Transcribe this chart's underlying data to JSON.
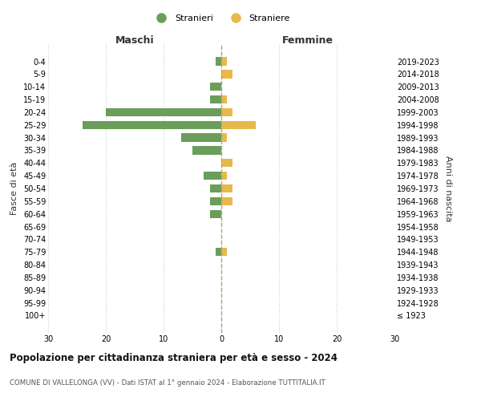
{
  "age_groups": [
    "0-4",
    "5-9",
    "10-14",
    "15-19",
    "20-24",
    "25-29",
    "30-34",
    "35-39",
    "40-44",
    "45-49",
    "50-54",
    "55-59",
    "60-64",
    "65-69",
    "70-74",
    "75-79",
    "80-84",
    "85-89",
    "90-94",
    "95-99",
    "100+"
  ],
  "birth_years": [
    "2019-2023",
    "2014-2018",
    "2009-2013",
    "2004-2008",
    "1999-2003",
    "1994-1998",
    "1989-1993",
    "1984-1988",
    "1979-1983",
    "1974-1978",
    "1969-1973",
    "1964-1968",
    "1959-1963",
    "1954-1958",
    "1949-1953",
    "1944-1948",
    "1939-1943",
    "1934-1938",
    "1929-1933",
    "1924-1928",
    "≤ 1923"
  ],
  "maschi": [
    1,
    0,
    2,
    2,
    20,
    24,
    7,
    5,
    0,
    3,
    2,
    2,
    2,
    0,
    0,
    1,
    0,
    0,
    0,
    0,
    0
  ],
  "femmine": [
    1,
    2,
    0,
    1,
    2,
    6,
    1,
    0,
    2,
    1,
    2,
    2,
    0,
    0,
    0,
    1,
    0,
    0,
    0,
    0,
    0
  ],
  "color_maschi": "#6a9e5a",
  "color_femmine": "#e8b84b",
  "title": "Popolazione per cittadinanza straniera per età e sesso - 2024",
  "subtitle": "COMUNE DI VALLELONGA (VV) - Dati ISTAT al 1° gennaio 2024 - Elaborazione TUTTITALIA.IT",
  "label_maschi": "Stranieri",
  "label_femmine": "Straniere",
  "xlabel_left": "Maschi",
  "xlabel_right": "Femmine",
  "ylabel_left": "Fasce di età",
  "ylabel_right": "Anni di nascita",
  "xlim": 30,
  "background_color": "#ffffff",
  "grid_color": "#cccccc"
}
